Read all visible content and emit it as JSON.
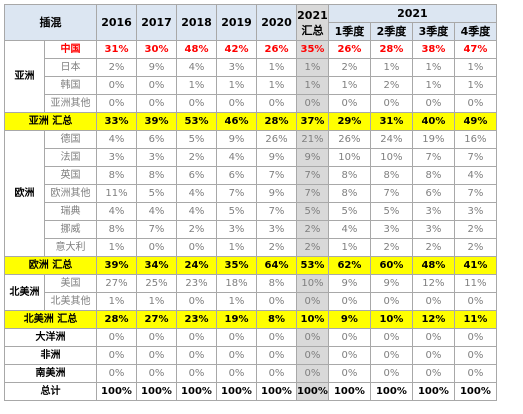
{
  "header": {
    "corner": "插混",
    "years": [
      "2016",
      "2017",
      "2018",
      "2019",
      "2020"
    ],
    "ytd_year": "2021",
    "ytd_label": "汇总",
    "quarter_group": "2021",
    "quarters": [
      "1季度",
      "2季度",
      "3季度",
      "4季度"
    ]
  },
  "groups": [
    {
      "region": "亚洲",
      "rows": [
        {
          "name": "中国",
          "highlight": true,
          "values": [
            "31%",
            "30%",
            "48%",
            "42%",
            "26%",
            "35%",
            "26%",
            "28%",
            "38%",
            "47%"
          ]
        },
        {
          "name": "日本",
          "values": [
            "2%",
            "9%",
            "4%",
            "3%",
            "1%",
            "1%",
            "2%",
            "1%",
            "1%",
            "1%"
          ]
        },
        {
          "name": "韩国",
          "values": [
            "0%",
            "0%",
            "1%",
            "1%",
            "1%",
            "1%",
            "1%",
            "2%",
            "1%",
            "1%"
          ]
        },
        {
          "name": "亚洲其他",
          "values": [
            "0%",
            "0%",
            "0%",
            "0%",
            "0%",
            "0%",
            "0%",
            "0%",
            "0%",
            "0%"
          ]
        }
      ],
      "total": {
        "name": "亚洲 汇总",
        "values": [
          "33%",
          "39%",
          "53%",
          "46%",
          "28%",
          "37%",
          "29%",
          "31%",
          "40%",
          "49%"
        ]
      }
    },
    {
      "region": "欧洲",
      "rows": [
        {
          "name": "德国",
          "values": [
            "4%",
            "6%",
            "5%",
            "9%",
            "26%",
            "21%",
            "26%",
            "24%",
            "19%",
            "16%"
          ]
        },
        {
          "name": "法国",
          "values": [
            "3%",
            "3%",
            "2%",
            "4%",
            "9%",
            "9%",
            "10%",
            "10%",
            "7%",
            "7%"
          ]
        },
        {
          "name": "英国",
          "values": [
            "8%",
            "8%",
            "6%",
            "6%",
            "7%",
            "7%",
            "8%",
            "8%",
            "8%",
            "4%"
          ]
        },
        {
          "name": "欧洲其他",
          "values": [
            "11%",
            "5%",
            "4%",
            "7%",
            "9%",
            "7%",
            "8%",
            "7%",
            "6%",
            "7%"
          ]
        },
        {
          "name": "瑞典",
          "values": [
            "4%",
            "4%",
            "4%",
            "5%",
            "7%",
            "5%",
            "5%",
            "5%",
            "3%",
            "3%"
          ]
        },
        {
          "name": "挪威",
          "values": [
            "8%",
            "7%",
            "2%",
            "3%",
            "3%",
            "2%",
            "4%",
            "3%",
            "3%",
            "2%"
          ]
        },
        {
          "name": "意大利",
          "values": [
            "1%",
            "0%",
            "0%",
            "1%",
            "2%",
            "2%",
            "1%",
            "2%",
            "2%",
            "2%"
          ]
        }
      ],
      "total": {
        "name": "欧洲 汇总",
        "values": [
          "39%",
          "34%",
          "24%",
          "35%",
          "64%",
          "53%",
          "62%",
          "60%",
          "48%",
          "41%"
        ]
      }
    },
    {
      "region": "北美洲",
      "rows": [
        {
          "name": "美国",
          "values": [
            "27%",
            "25%",
            "23%",
            "18%",
            "8%",
            "10%",
            "9%",
            "9%",
            "12%",
            "11%"
          ]
        },
        {
          "name": "北美其他",
          "values": [
            "1%",
            "1%",
            "0%",
            "1%",
            "0%",
            "0%",
            "0%",
            "0%",
            "0%",
            "0%"
          ]
        }
      ],
      "total": {
        "name": "北美洲 汇总",
        "values": [
          "28%",
          "27%",
          "23%",
          "19%",
          "8%",
          "10%",
          "9%",
          "10%",
          "12%",
          "11%"
        ]
      }
    }
  ],
  "others": [
    {
      "name": "大洋洲",
      "values": [
        "0%",
        "0%",
        "0%",
        "0%",
        "0%",
        "0%",
        "0%",
        "0%",
        "0%",
        "0%"
      ]
    },
    {
      "name": "非洲",
      "values": [
        "0%",
        "0%",
        "0%",
        "0%",
        "0%",
        "0%",
        "0%",
        "0%",
        "0%",
        "0%"
      ]
    },
    {
      "name": "南美洲",
      "values": [
        "0%",
        "0%",
        "0%",
        "0%",
        "0%",
        "0%",
        "0%",
        "0%",
        "0%",
        "0%"
      ]
    }
  ],
  "grand_total": {
    "name": "总计",
    "values": [
      "100%",
      "100%",
      "100%",
      "100%",
      "100%",
      "100%",
      "100%",
      "100%",
      "100%",
      "100%"
    ]
  }
}
